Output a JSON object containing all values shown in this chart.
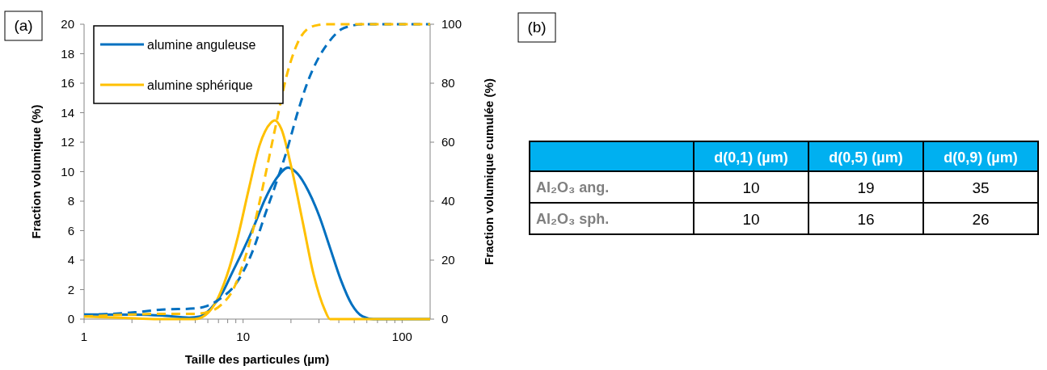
{
  "chart_data": [
    {
      "type": "line",
      "title": "(a)",
      "xlabel": "Taille des particules (µm)",
      "ylabel": "Fraction volumique (%)",
      "y2label": "Fraction volumique cumulée (%)",
      "log": "x",
      "xlim": [
        1,
        150
      ],
      "xticks": [
        1,
        {
          "value": 2,
          "label": null
        },
        {
          "value": 3,
          "label": null
        },
        {
          "value": 4,
          "label": null
        },
        {
          "value": 5,
          "label": null
        },
        {
          "value": 6,
          "label": null
        },
        {
          "value": 7,
          "label": null
        },
        {
          "value": 8,
          "label": null
        },
        {
          "value": 9,
          "label": null
        },
        10,
        {
          "value": 20,
          "label": null
        },
        {
          "value": 30,
          "label": null
        },
        {
          "value": 40,
          "label": null
        },
        {
          "value": 50,
          "label": null
        },
        {
          "value": 60,
          "label": null
        },
        {
          "value": 70,
          "label": null
        },
        {
          "value": 80,
          "label": null
        },
        {
          "value": 90,
          "label": null
        },
        100
      ],
      "ylim": [
        0,
        20
      ],
      "yticks": [
        0,
        2,
        4,
        6,
        8,
        10,
        12,
        14,
        16,
        18,
        20
      ],
      "y2lim": [
        0,
        100
      ],
      "y2ticks": [
        0,
        20,
        40,
        60,
        80,
        100
      ],
      "grid": false,
      "legend": "top left",
      "marker": "none",
      "series": [
        {
          "name": "alumine anguleuse",
          "color": "#0070c0",
          "line_style": "solid",
          "x": [
            1,
            2.09,
            3.09,
            4.58,
            5.36,
            6.27,
            7.33,
            8.58,
            10,
            11.7,
            13.7,
            16.1,
            19.2,
            22,
            25.7,
            30.1,
            35.2,
            41.2,
            48.2,
            56.4,
            65.9,
            150
          ],
          "values": [
            0.31,
            0.3,
            0.24,
            0.1,
            0.18,
            0.73,
            1.7,
            3.2,
            4.66,
            6.3,
            8.1,
            9.5,
            10.28,
            9.86,
            8.7,
            7,
            4.84,
            2.65,
            1,
            0.18,
            0,
            0
          ]
        },
        {
          "name": "alumine sphérique",
          "color": "#ffc000",
          "line_style": "solid",
          "x": [
            1,
            2.09,
            3.09,
            4.95,
            5.8,
            6.78,
            7.93,
            9.28,
            10.9,
            12.7,
            14.9,
            15.8,
            17.4,
            20.3,
            23.8,
            27.8,
            32.6,
            35.2,
            150
          ],
          "values": [
            0.18,
            0.05,
            0,
            0,
            0.27,
            1.2,
            3,
            5.6,
            8.9,
            11.8,
            13.3,
            13.48,
            12.9,
            10.1,
            6.5,
            3,
            0.64,
            0,
            0
          ]
        },
        {
          "color": "#0070c0",
          "line_style": "dashed",
          "axis": "y2",
          "x": [
            1,
            2.09,
            3.09,
            4.95,
            6.27,
            7.33,
            8.58,
            10,
            11.7,
            13.7,
            16.1,
            18.8,
            22,
            25.7,
            30.1,
            35.2,
            41.2,
            48.2,
            56.4,
            150
          ],
          "values": [
            1.4,
            2.3,
            3.2,
            3.6,
            5,
            7.3,
            10.5,
            16,
            24.2,
            35.2,
            46,
            57,
            70,
            81,
            89,
            94.5,
            98.2,
            99.5,
            100,
            100
          ]
        },
        {
          "color": "#ffc000",
          "line_style": "dashed",
          "axis": "y2",
          "x": [
            1,
            2.09,
            3.09,
            4.95,
            6.27,
            7.33,
            8.58,
            10,
            11.7,
            13.7,
            16.1,
            18.8,
            22,
            25.7,
            30.1,
            32.6,
            150
          ],
          "values": [
            0.9,
            1.6,
            1.8,
            1.8,
            2.7,
            5,
            9.6,
            18.7,
            31.5,
            48,
            66,
            82.6,
            93.6,
            98.6,
            99.8,
            100,
            100
          ]
        }
      ]
    },
    {
      "type": "other",
      "title": "(b)",
      "color": "#00b0f0",
      "categories": [
        "d(0,1) (µm)",
        "d(0,5) (µm)",
        "d(0,9) (µm)"
      ],
      "y_categories": [
        "Al₂O₃ ang.",
        "Al₂O₃ sph."
      ],
      "cell_labels": [
        [
          "10",
          "19",
          "35"
        ],
        [
          "10",
          "16",
          "26"
        ]
      ]
    }
  ]
}
